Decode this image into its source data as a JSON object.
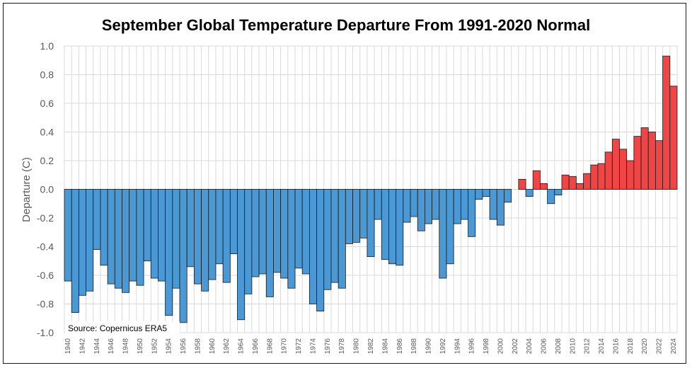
{
  "chart_data": {
    "type": "bar",
    "title": "September Global Temperature Departure From 1991-2020 Normal",
    "ylabel": "Departure (C)",
    "xlabel": "",
    "source": "Source: Copernicus ERA5",
    "ylim": [
      -1.0,
      1.0
    ],
    "yticks": [
      "1.0",
      "0.8",
      "0.6",
      "0.4",
      "0.2",
      "0.0",
      "-0.2",
      "-0.4",
      "-0.6",
      "-0.8",
      "-1.0"
    ],
    "ytick_values": [
      1.0,
      0.8,
      0.6,
      0.4,
      0.2,
      0.0,
      -0.2,
      -0.4,
      -0.6,
      -0.8,
      -1.0
    ],
    "grid": true,
    "colors": {
      "negative": "#4a98d4",
      "positive": "#f04545",
      "edge": "#1a1a1a",
      "grid": "#d9d9d9"
    },
    "categories": [
      "1940",
      "1941",
      "1942",
      "1943",
      "1944",
      "1945",
      "1946",
      "1947",
      "1948",
      "1949",
      "1950",
      "1951",
      "1952",
      "1953",
      "1954",
      "1955",
      "1956",
      "1957",
      "1958",
      "1959",
      "1960",
      "1961",
      "1962",
      "1963",
      "1964",
      "1965",
      "1966",
      "1967",
      "1968",
      "1969",
      "1970",
      "1971",
      "1972",
      "1973",
      "1974",
      "1975",
      "1976",
      "1977",
      "1978",
      "1979",
      "1980",
      "1981",
      "1982",
      "1983",
      "1984",
      "1985",
      "1986",
      "1987",
      "1988",
      "1989",
      "1990",
      "1991",
      "1992",
      "1993",
      "1994",
      "1995",
      "1996",
      "1997",
      "1998",
      "1999",
      "2000",
      "2001",
      "2002",
      "2003",
      "2004",
      "2005",
      "2006",
      "2007",
      "2008",
      "2009",
      "2010",
      "2011",
      "2012",
      "2013",
      "2014",
      "2015",
      "2016",
      "2017",
      "2018",
      "2019",
      "2020",
      "2021",
      "2022",
      "2023",
      "2024"
    ],
    "xtick_labels": [
      "1940",
      "1942",
      "1944",
      "1946",
      "1948",
      "1950",
      "1952",
      "1954",
      "1956",
      "1958",
      "1960",
      "1962",
      "1964",
      "1966",
      "1968",
      "1970",
      "1972",
      "1974",
      "1976",
      "1978",
      "1980",
      "1982",
      "1984",
      "1986",
      "1988",
      "1990",
      "1992",
      "1994",
      "1996",
      "1998",
      "2000",
      "2002",
      "2004",
      "2006",
      "2008",
      "2010",
      "2012",
      "2014",
      "2016",
      "2018",
      "2020",
      "2022",
      "2024"
    ],
    "values": [
      -0.64,
      -0.86,
      -0.74,
      -0.71,
      -0.42,
      -0.53,
      -0.66,
      -0.69,
      -0.72,
      -0.64,
      -0.67,
      -0.5,
      -0.62,
      -0.64,
      -0.88,
      -0.69,
      -0.93,
      -0.54,
      -0.66,
      -0.71,
      -0.63,
      -0.52,
      -0.65,
      -0.45,
      -0.91,
      -0.73,
      -0.61,
      -0.59,
      -0.75,
      -0.58,
      -0.62,
      -0.69,
      -0.55,
      -0.59,
      -0.8,
      -0.85,
      -0.7,
      -0.65,
      -0.69,
      -0.38,
      -0.37,
      -0.34,
      -0.47,
      -0.21,
      -0.49,
      -0.52,
      -0.53,
      -0.23,
      -0.19,
      -0.29,
      -0.24,
      -0.21,
      -0.62,
      -0.52,
      -0.24,
      -0.21,
      -0.33,
      -0.07,
      -0.05,
      -0.21,
      -0.25,
      -0.09,
      0.0,
      0.07,
      -0.05,
      0.13,
      0.04,
      -0.1,
      -0.04,
      0.1,
      0.09,
      0.04,
      0.11,
      0.17,
      0.18,
      0.26,
      0.35,
      0.28,
      0.2,
      0.37,
      0.43,
      0.4,
      0.34,
      0.93,
      0.72
    ]
  }
}
